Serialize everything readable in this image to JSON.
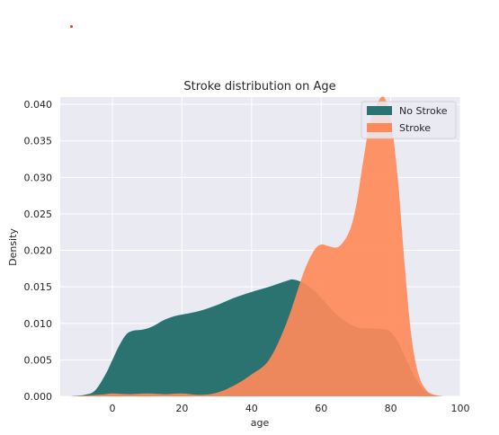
{
  "chart_data": {
    "type": "area",
    "title": "Stroke distribution on Age",
    "xlabel": "age",
    "ylabel": "Density",
    "xlim": [
      -15,
      100
    ],
    "ylim": [
      0,
      0.041
    ],
    "x_ticks": [
      0,
      20,
      40,
      60,
      80,
      100
    ],
    "y_ticks": [
      0.0,
      0.005,
      0.01,
      0.015,
      0.02,
      0.025,
      0.03,
      0.035,
      0.04
    ],
    "x_tick_labels": [
      "0",
      "20",
      "40",
      "60",
      "80",
      "100"
    ],
    "y_tick_labels": [
      "0.000",
      "0.005",
      "0.010",
      "0.015",
      "0.020",
      "0.025",
      "0.030",
      "0.035",
      "0.040"
    ],
    "grid": true,
    "legend_position": "top-right",
    "series": [
      {
        "name": "No Stroke",
        "color": "#2a7370",
        "x": [
          -12,
          -8,
          -5,
          -2,
          0,
          2,
          4,
          6,
          8,
          10,
          12,
          15,
          18,
          20,
          25,
          30,
          35,
          40,
          45,
          50,
          52,
          55,
          58,
          60,
          65,
          70,
          75,
          78,
          80,
          82,
          84,
          86,
          88,
          90,
          92,
          95
        ],
        "y": [
          0,
          0.0002,
          0.0008,
          0.003,
          0.005,
          0.007,
          0.0085,
          0.009,
          0.0091,
          0.0093,
          0.0097,
          0.0105,
          0.011,
          0.0112,
          0.0117,
          0.0125,
          0.0135,
          0.0143,
          0.015,
          0.0158,
          0.016,
          0.0155,
          0.0145,
          0.0135,
          0.011,
          0.0095,
          0.0093,
          0.0092,
          0.0088,
          0.0075,
          0.0055,
          0.0035,
          0.0018,
          0.0007,
          0.0002,
          0
        ]
      },
      {
        "name": "Stroke",
        "color": "#fd8a5a",
        "x": [
          -12,
          -8,
          -5,
          -2,
          0,
          5,
          10,
          15,
          20,
          25,
          30,
          35,
          40,
          45,
          50,
          55,
          58,
          60,
          62,
          65,
          68,
          70,
          72,
          74,
          76,
          78,
          80,
          82,
          84,
          86,
          88,
          90,
          92,
          95
        ],
        "y": [
          0,
          0.0001,
          0.0002,
          0.0003,
          0.0004,
          0.0003,
          0.0004,
          0.0003,
          0.0004,
          0.0002,
          0.0005,
          0.0015,
          0.003,
          0.005,
          0.01,
          0.017,
          0.02,
          0.0208,
          0.0206,
          0.0205,
          0.0225,
          0.026,
          0.032,
          0.0375,
          0.04,
          0.041,
          0.038,
          0.03,
          0.018,
          0.008,
          0.003,
          0.001,
          0.0003,
          0
        ]
      }
    ]
  }
}
